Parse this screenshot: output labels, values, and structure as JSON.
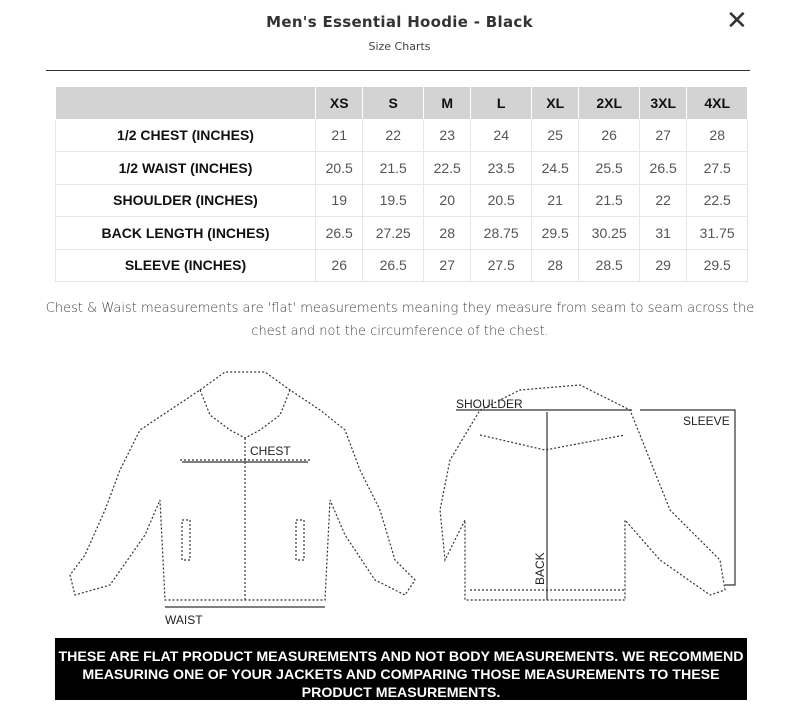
{
  "header": {
    "title": "Men's Essential Hoodie - Black",
    "subtitle": "Size Charts",
    "close_icon": "close-icon"
  },
  "table": {
    "sizes": [
      "XS",
      "S",
      "M",
      "L",
      "XL",
      "2XL",
      "3XL",
      "4XL"
    ],
    "rows": [
      {
        "label": "1/2 CHEST (INCHES)",
        "values": [
          "21",
          "22",
          "23",
          "24",
          "25",
          "26",
          "27",
          "28"
        ]
      },
      {
        "label": "1/2 WAIST (INCHES)",
        "values": [
          "20.5",
          "21.5",
          "22.5",
          "23.5",
          "24.5",
          "25.5",
          "26.5",
          "27.5"
        ]
      },
      {
        "label": "SHOULDER (INCHES)",
        "values": [
          "19",
          "19.5",
          "20",
          "20.5",
          "21",
          "21.5",
          "22",
          "22.5"
        ]
      },
      {
        "label": "BACK LENGTH (INCHES)",
        "values": [
          "26.5",
          "27.25",
          "28",
          "28.75",
          "29.5",
          "30.25",
          "31",
          "31.75"
        ]
      },
      {
        "label": "SLEEVE (INCHES)",
        "values": [
          "26",
          "26.5",
          "27",
          "27.5",
          "28",
          "28.5",
          "29",
          "29.5"
        ]
      }
    ]
  },
  "note": "Chest & Waist measurements are 'flat' measurements meaning they measure from seam to seam across the chest and not the circumference of the chest.",
  "diagram": {
    "chest": "CHEST",
    "waist": "WAIST",
    "shoulder": "SHOULDER",
    "sleeve": "SLEEVE",
    "back": "BACK"
  },
  "banner": "THESE ARE FLAT PRODUCT MEASUREMENTS AND NOT BODY MEASUREMENTS. WE RECOMMEND MEASURING ONE OF YOUR JACKETS AND COMPARING THOSE MEASUREMENTS TO THESE PRODUCT MEASUREMENTS."
}
